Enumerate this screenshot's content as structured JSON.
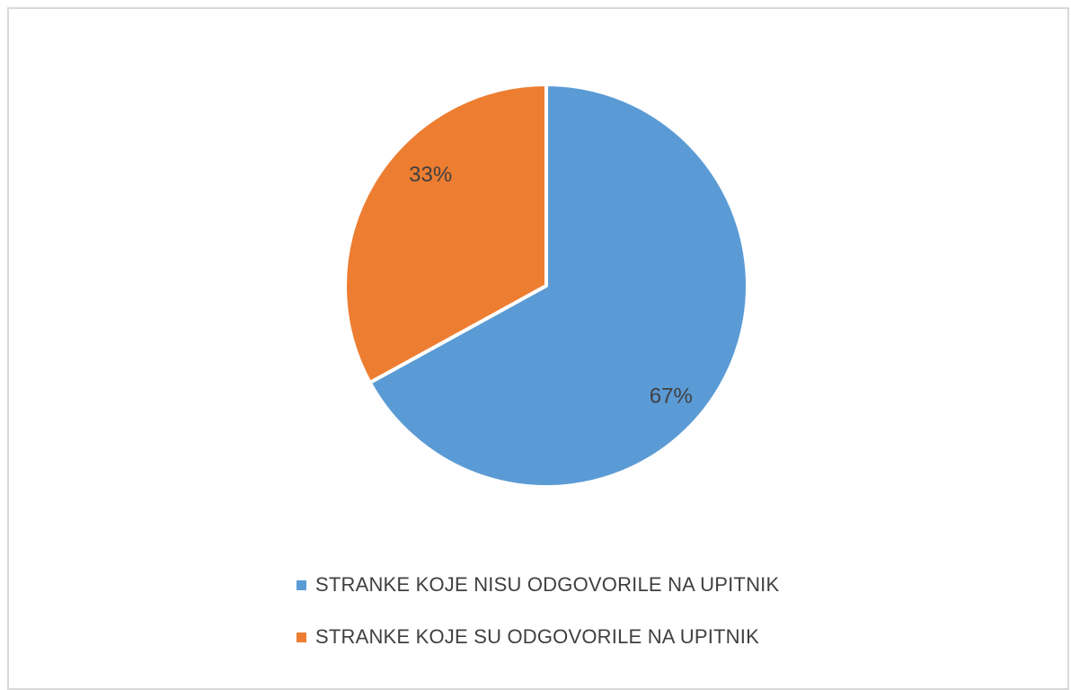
{
  "chart_data": {
    "type": "pie",
    "title": "",
    "categories": [
      "STRANKE KOJE NISU ODGOVORILE NA UPITNIK",
      "STRANKE KOJE SU ODGOVORILE NA UPITNIK"
    ],
    "values": [
      67,
      33
    ],
    "data_labels": [
      "67%",
      "33%"
    ],
    "colors": [
      "#5b9bd5",
      "#ed7d31"
    ],
    "legend_position": "bottom",
    "start_angle": "12 o'clock, clockwise"
  }
}
